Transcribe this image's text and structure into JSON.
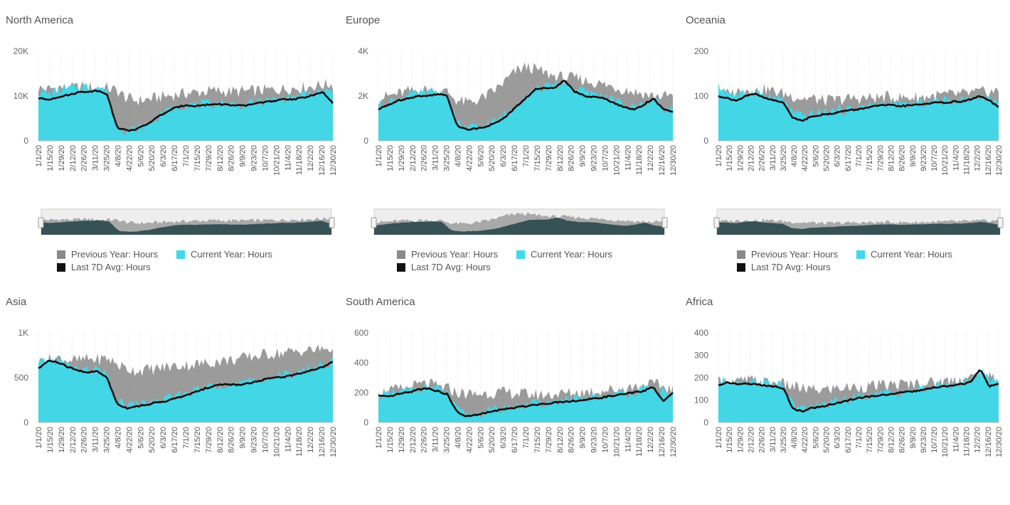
{
  "colors": {
    "previous": "#8a8a8a",
    "current": "#3ed9ea",
    "avg": "#111111",
    "navigator_fill": "#375255",
    "navigator_prev": "#a9a9a9"
  },
  "legend": {
    "previous": "Previous Year: Hours",
    "current": "Current Year: Hours",
    "avg": "Last 7D Avg: Hours"
  },
  "x_labels": [
    "1/1/20",
    "1/15/20",
    "1/29/20",
    "2/12/20",
    "2/26/20",
    "3/11/20",
    "3/25/20",
    "4/8/20",
    "4/22/20",
    "5/6/20",
    "5/20/20",
    "6/3/20",
    "6/17/20",
    "7/1/20",
    "7/15/20",
    "7/29/20",
    "8/12/20",
    "8/26/20",
    "9/9/20",
    "9/23/20",
    "10/7/20",
    "10/21/20",
    "11/4/20",
    "11/18/20",
    "12/2/20",
    "12/16/20",
    "12/30/20"
  ],
  "chart_data": [
    {
      "type": "area",
      "title": "North America",
      "yticks": [
        "0",
        "10K",
        "20K"
      ],
      "ylim": [
        0,
        20000
      ],
      "navigator": true,
      "series": [
        {
          "name": "Previous Year: Hours",
          "values": [
            11800,
            11500,
            12000,
            11700,
            11900,
            12200,
            11600,
            11800,
            11200,
            9500,
            9000,
            9200,
            9600,
            10000,
            10300,
            10600,
            10800,
            11000,
            11200,
            11000,
            11000,
            11000,
            11200,
            11300,
            11400,
            11600,
            11800,
            11900,
            12200,
            12500,
            12700
          ]
        },
        {
          "name": "Current Year: Hours",
          "values": [
            11000,
            10500,
            11000,
            11500,
            12000,
            12000,
            12200,
            11000,
            3500,
            2300,
            2600,
            3500,
            5000,
            6500,
            7500,
            8200,
            8000,
            8100,
            8400,
            8300,
            8100,
            8000,
            8400,
            8800,
            9000,
            9500,
            9800,
            10200,
            10500,
            11000,
            11000
          ]
        },
        {
          "name": "Last 7D Avg: Hours",
          "values": [
            9500,
            9200,
            9800,
            10200,
            10800,
            11000,
            11200,
            10500,
            3000,
            2300,
            2600,
            3600,
            5100,
            6400,
            7400,
            8000,
            7800,
            8000,
            8200,
            8100,
            7900,
            7800,
            8300,
            8700,
            8800,
            9300,
            9300,
            9600,
            10300,
            10800,
            8300
          ]
        }
      ]
    },
    {
      "type": "area",
      "title": "Europe",
      "yticks": [
        "0",
        "2K",
        "4K"
      ],
      "ylim": [
        0,
        4000
      ],
      "navigator": true,
      "series": [
        {
          "name": "Previous Year: Hours",
          "values": [
            1900,
            2000,
            2100,
            2200,
            2200,
            2300,
            2200,
            2200,
            1800,
            1700,
            1800,
            2000,
            2300,
            2700,
            3100,
            3300,
            3200,
            3000,
            2900,
            2800,
            2800,
            2700,
            2600,
            2500,
            2400,
            2300,
            2200,
            2100,
            2000,
            2000,
            2000
          ]
        },
        {
          "name": "Current Year: Hours",
          "values": [
            1600,
            1700,
            1900,
            2000,
            2100,
            2100,
            2200,
            2100,
            800,
            550,
            600,
            700,
            900,
            1200,
            1600,
            2000,
            2300,
            2400,
            2500,
            2600,
            2300,
            2200,
            2100,
            2000,
            1800,
            1600,
            1500,
            1700,
            1800,
            1500,
            1400
          ]
        },
        {
          "name": "Last 7D Avg: Hours",
          "values": [
            1400,
            1600,
            1800,
            1900,
            2000,
            2000,
            2100,
            2000,
            700,
            500,
            550,
            650,
            800,
            1100,
            1500,
            1900,
            2300,
            2350,
            2400,
            2700,
            2200,
            2000,
            1950,
            1900,
            1700,
            1500,
            1400,
            1600,
            1900,
            1400,
            1300
          ]
        }
      ]
    },
    {
      "type": "area",
      "title": "Oceania",
      "yticks": [
        "0",
        "100",
        "200"
      ],
      "ylim": [
        0,
        200
      ],
      "navigator": true,
      "series": [
        {
          "name": "Previous Year: Hours",
          "values": [
            110,
            105,
            110,
            115,
            110,
            115,
            110,
            105,
            100,
            95,
            95,
            90,
            90,
            92,
            94,
            95,
            95,
            96,
            98,
            97,
            96,
            97,
            98,
            100,
            102,
            103,
            104,
            106,
            108,
            110,
            110
          ]
        },
        {
          "name": "Current Year: Hours",
          "values": [
            120,
            110,
            100,
            105,
            110,
            100,
            95,
            90,
            60,
            55,
            60,
            62,
            65,
            68,
            70,
            75,
            78,
            80,
            82,
            80,
            80,
            82,
            85,
            88,
            90,
            90,
            92,
            95,
            100,
            95,
            85
          ]
        },
        {
          "name": "Last 7D Avg: Hours",
          "values": [
            100,
            95,
            90,
            100,
            105,
            95,
            90,
            85,
            50,
            45,
            55,
            58,
            60,
            65,
            68,
            70,
            75,
            78,
            80,
            78,
            78,
            80,
            82,
            85,
            85,
            87,
            88,
            92,
            100,
            90,
            75
          ]
        }
      ]
    },
    {
      "type": "area",
      "title": "Asia",
      "yticks": [
        "0",
        "500",
        "1K"
      ],
      "ylim": [
        0,
        1000
      ],
      "navigator": false,
      "series": [
        {
          "name": "Previous Year: Hours",
          "values": [
            680,
            700,
            720,
            700,
            690,
            710,
            700,
            720,
            650,
            600,
            580,
            590,
            600,
            620,
            630,
            640,
            650,
            660,
            680,
            690,
            700,
            720,
            740,
            760,
            770,
            780,
            790,
            800,
            810,
            820,
            830
          ]
        },
        {
          "name": "Current Year: Hours",
          "values": [
            640,
            700,
            680,
            630,
            600,
            580,
            590,
            520,
            230,
            190,
            200,
            210,
            230,
            260,
            290,
            330,
            360,
            390,
            420,
            440,
            430,
            440,
            460,
            490,
            510,
            530,
            550,
            580,
            610,
            650,
            690
          ]
        },
        {
          "name": "Last 7D Avg: Hours",
          "values": [
            600,
            690,
            670,
            620,
            580,
            560,
            570,
            500,
            210,
            160,
            180,
            200,
            220,
            240,
            270,
            300,
            340,
            380,
            410,
            430,
            420,
            430,
            450,
            480,
            500,
            510,
            530,
            560,
            590,
            620,
            680
          ]
        }
      ]
    },
    {
      "type": "area",
      "title": "South America",
      "yticks": [
        "0",
        "200",
        "400",
        "600"
      ],
      "ylim": [
        0,
        600
      ],
      "navigator": false,
      "series": [
        {
          "name": "Previous Year: Hours",
          "values": [
            200,
            210,
            220,
            230,
            250,
            260,
            240,
            230,
            200,
            190,
            190,
            195,
            200,
            200,
            195,
            190,
            185,
            185,
            190,
            195,
            200,
            205,
            210,
            215,
            220,
            230,
            240,
            250,
            255,
            240,
            220
          ]
        },
        {
          "name": "Current Year: Hours",
          "values": [
            190,
            180,
            200,
            210,
            230,
            240,
            220,
            200,
            80,
            50,
            60,
            70,
            85,
            95,
            105,
            115,
            125,
            130,
            140,
            145,
            150,
            155,
            165,
            175,
            185,
            195,
            205,
            215,
            230,
            200,
            190
          ]
        },
        {
          "name": "Last 7D Avg: Hours",
          "values": [
            180,
            170,
            190,
            200,
            220,
            230,
            210,
            190,
            70,
            40,
            50,
            65,
            80,
            90,
            100,
            110,
            120,
            125,
            135,
            140,
            145,
            150,
            160,
            170,
            180,
            190,
            200,
            210,
            240,
            140,
            200
          ]
        }
      ]
    },
    {
      "type": "area",
      "title": "Africa",
      "yticks": [
        "0",
        "100",
        "200",
        "300",
        "400"
      ],
      "ylim": [
        0,
        400
      ],
      "navigator": false,
      "series": [
        {
          "name": "Previous Year: Hours",
          "values": [
            180,
            185,
            180,
            190,
            185,
            180,
            175,
            170,
            160,
            150,
            145,
            145,
            150,
            155,
            155,
            160,
            160,
            165,
            165,
            170,
            170,
            175,
            175,
            180,
            185,
            190,
            195,
            200,
            210,
            200,
            190
          ]
        },
        {
          "name": "Current Year: Hours",
          "values": [
            175,
            190,
            180,
            185,
            180,
            175,
            170,
            160,
            80,
            60,
            70,
            75,
            85,
            95,
            105,
            115,
            120,
            125,
            130,
            135,
            140,
            145,
            150,
            160,
            165,
            170,
            175,
            185,
            230,
            200,
            180
          ]
        },
        {
          "name": "Last 7D Avg: Hours",
          "values": [
            165,
            180,
            170,
            175,
            170,
            165,
            160,
            150,
            60,
            50,
            65,
            70,
            80,
            90,
            100,
            110,
            115,
            120,
            125,
            130,
            135,
            140,
            145,
            155,
            160,
            165,
            170,
            180,
            240,
            160,
            175
          ]
        }
      ]
    }
  ]
}
